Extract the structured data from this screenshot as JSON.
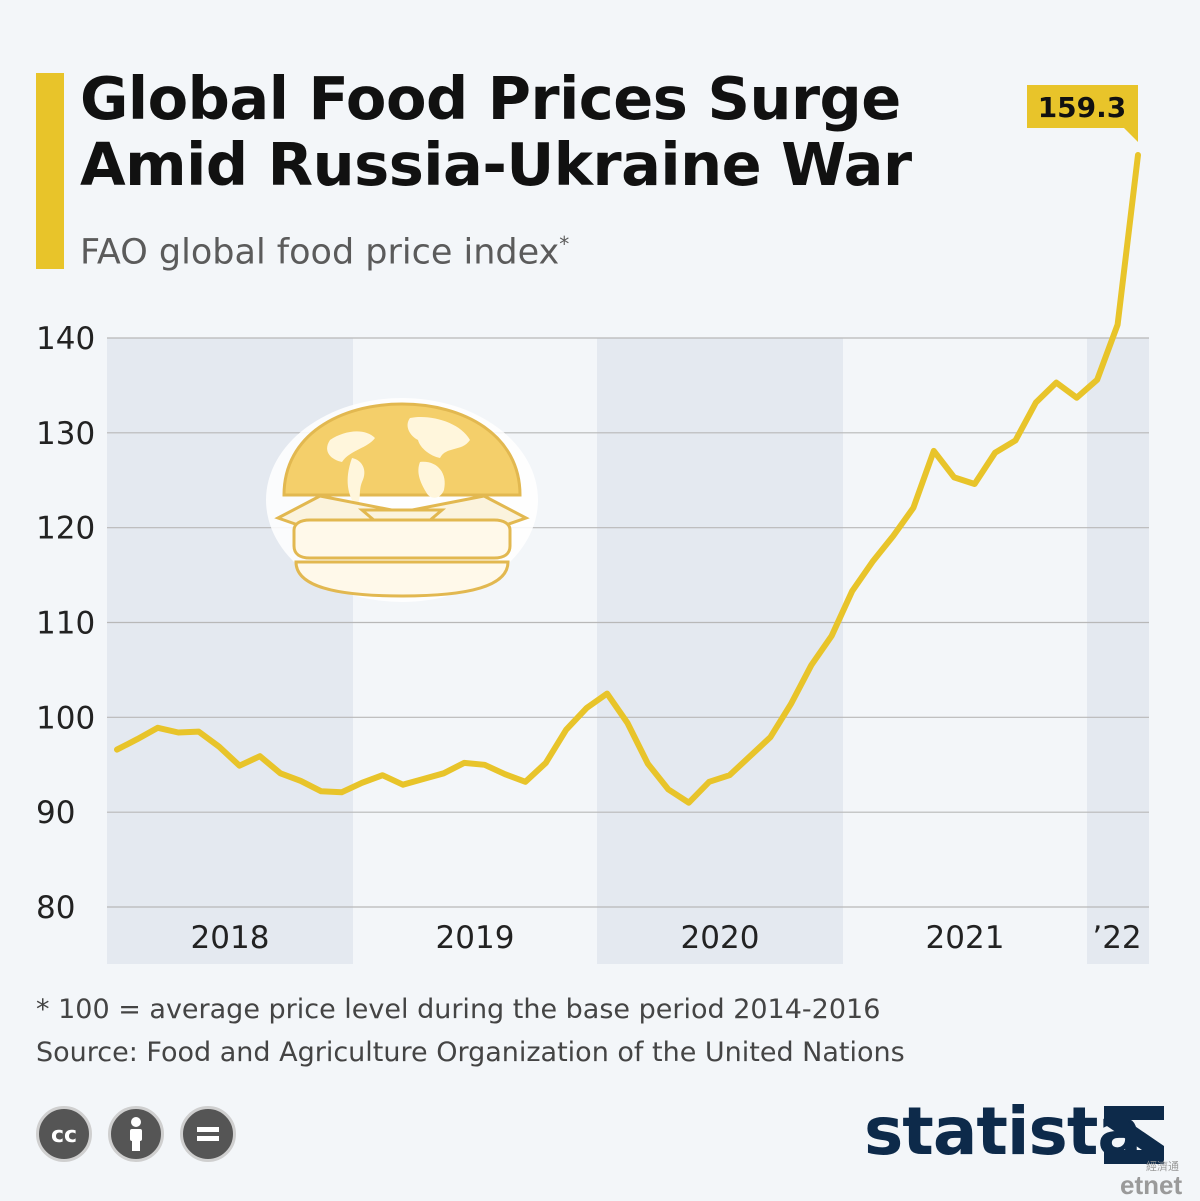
{
  "header": {
    "title_line1": "Global Food Prices Surge",
    "title_line2": "Amid Russia-Ukraine War",
    "subtitle": "FAO global food price index",
    "subtitle_mark": "*"
  },
  "chart_data": {
    "type": "line",
    "title": "Global Food Prices Surge Amid Russia-Ukraine War",
    "subtitle": "FAO global food price index*",
    "ylim": [
      80,
      140
    ],
    "y_ticks": [
      80,
      90,
      100,
      110,
      120,
      130,
      140
    ],
    "x_tick_labels": [
      "2018",
      "2019",
      "2020",
      "2021",
      "’22"
    ],
    "grid": "horizontal",
    "color": "#e8c42a",
    "series": [
      {
        "x": [
          "2018-01",
          "2018-02",
          "2018-03",
          "2018-04",
          "2018-05",
          "2018-06",
          "2018-07",
          "2018-08",
          "2018-09",
          "2018-10",
          "2018-11",
          "2018-12",
          "2019-01",
          "2019-02",
          "2019-03",
          "2019-04",
          "2019-05",
          "2019-06",
          "2019-07",
          "2019-08",
          "2019-09",
          "2019-10",
          "2019-11",
          "2019-12",
          "2020-01",
          "2020-02",
          "2020-03",
          "2020-04",
          "2020-05",
          "2020-06",
          "2020-07",
          "2020-08",
          "2020-09",
          "2020-10",
          "2020-11",
          "2020-12",
          "2021-01",
          "2021-02",
          "2021-03",
          "2021-04",
          "2021-05",
          "2021-06",
          "2021-07",
          "2021-08",
          "2021-09",
          "2021-10",
          "2021-11",
          "2021-12",
          "2022-01",
          "2022-02",
          "2022-03"
        ],
        "values": [
          96.6,
          97.7,
          98.9,
          98.4,
          98.5,
          96.9,
          94.9,
          95.9,
          94.1,
          93.3,
          92.2,
          92.1,
          93.1,
          93.9,
          92.9,
          93.5,
          94.1,
          95.2,
          95.0,
          94.0,
          93.2,
          95.2,
          98.7,
          101.0,
          102.5,
          99.4,
          95.1,
          92.4,
          91.0,
          93.2,
          93.9,
          95.9,
          97.9,
          101.4,
          105.5,
          108.6,
          113.3,
          116.4,
          119.1,
          122.1,
          128.1,
          125.3,
          124.6,
          127.9,
          129.2,
          133.2,
          135.3,
          133.7,
          135.6,
          141.4,
          159.3
        ]
      }
    ],
    "callout": "159.3",
    "footnote": "* 100 = average price level during the base period 2014-2016",
    "source": "Source: Food and Agriculture Organization of the United Nations"
  },
  "footer": {
    "brand": "statista",
    "watermark": "etnet",
    "watermark_cn": "經濟通"
  },
  "icons": [
    "cc-icon",
    "attribution-icon",
    "no-derivatives-icon",
    "statista-logo-icon",
    "food-globe-burger-icon"
  ]
}
